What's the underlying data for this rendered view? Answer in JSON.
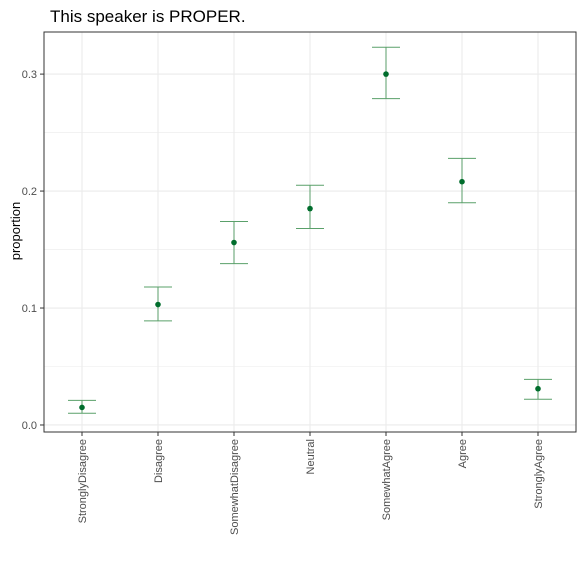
{
  "chart_data": {
    "type": "scatter",
    "title": "This speaker is PROPER.",
    "xlabel": "",
    "ylabel": "proportion",
    "categories": [
      "StronglyDisagree",
      "Disagree",
      "SomewhatDisagree",
      "Neutral",
      "SomewhatAgree",
      "Agree",
      "StronglyAgree"
    ],
    "values": [
      0.015,
      0.103,
      0.156,
      0.185,
      0.3,
      0.208,
      0.031
    ],
    "error_low": [
      0.01,
      0.089,
      0.138,
      0.168,
      0.279,
      0.19,
      0.022
    ],
    "error_high": [
      0.021,
      0.118,
      0.174,
      0.205,
      0.323,
      0.228,
      0.039
    ],
    "ylim": [
      -0.006,
      0.336
    ],
    "yticks": [
      0.0,
      0.1,
      0.2,
      0.3
    ],
    "ytick_labels": [
      "0.0",
      "0.1",
      "0.2",
      "0.3"
    ],
    "grid": true,
    "legend": "none",
    "colors": {
      "point": "#006d2c",
      "errorbar": "#5aa06a",
      "grid": "#ebebeb",
      "panel_border": "#333333"
    }
  }
}
